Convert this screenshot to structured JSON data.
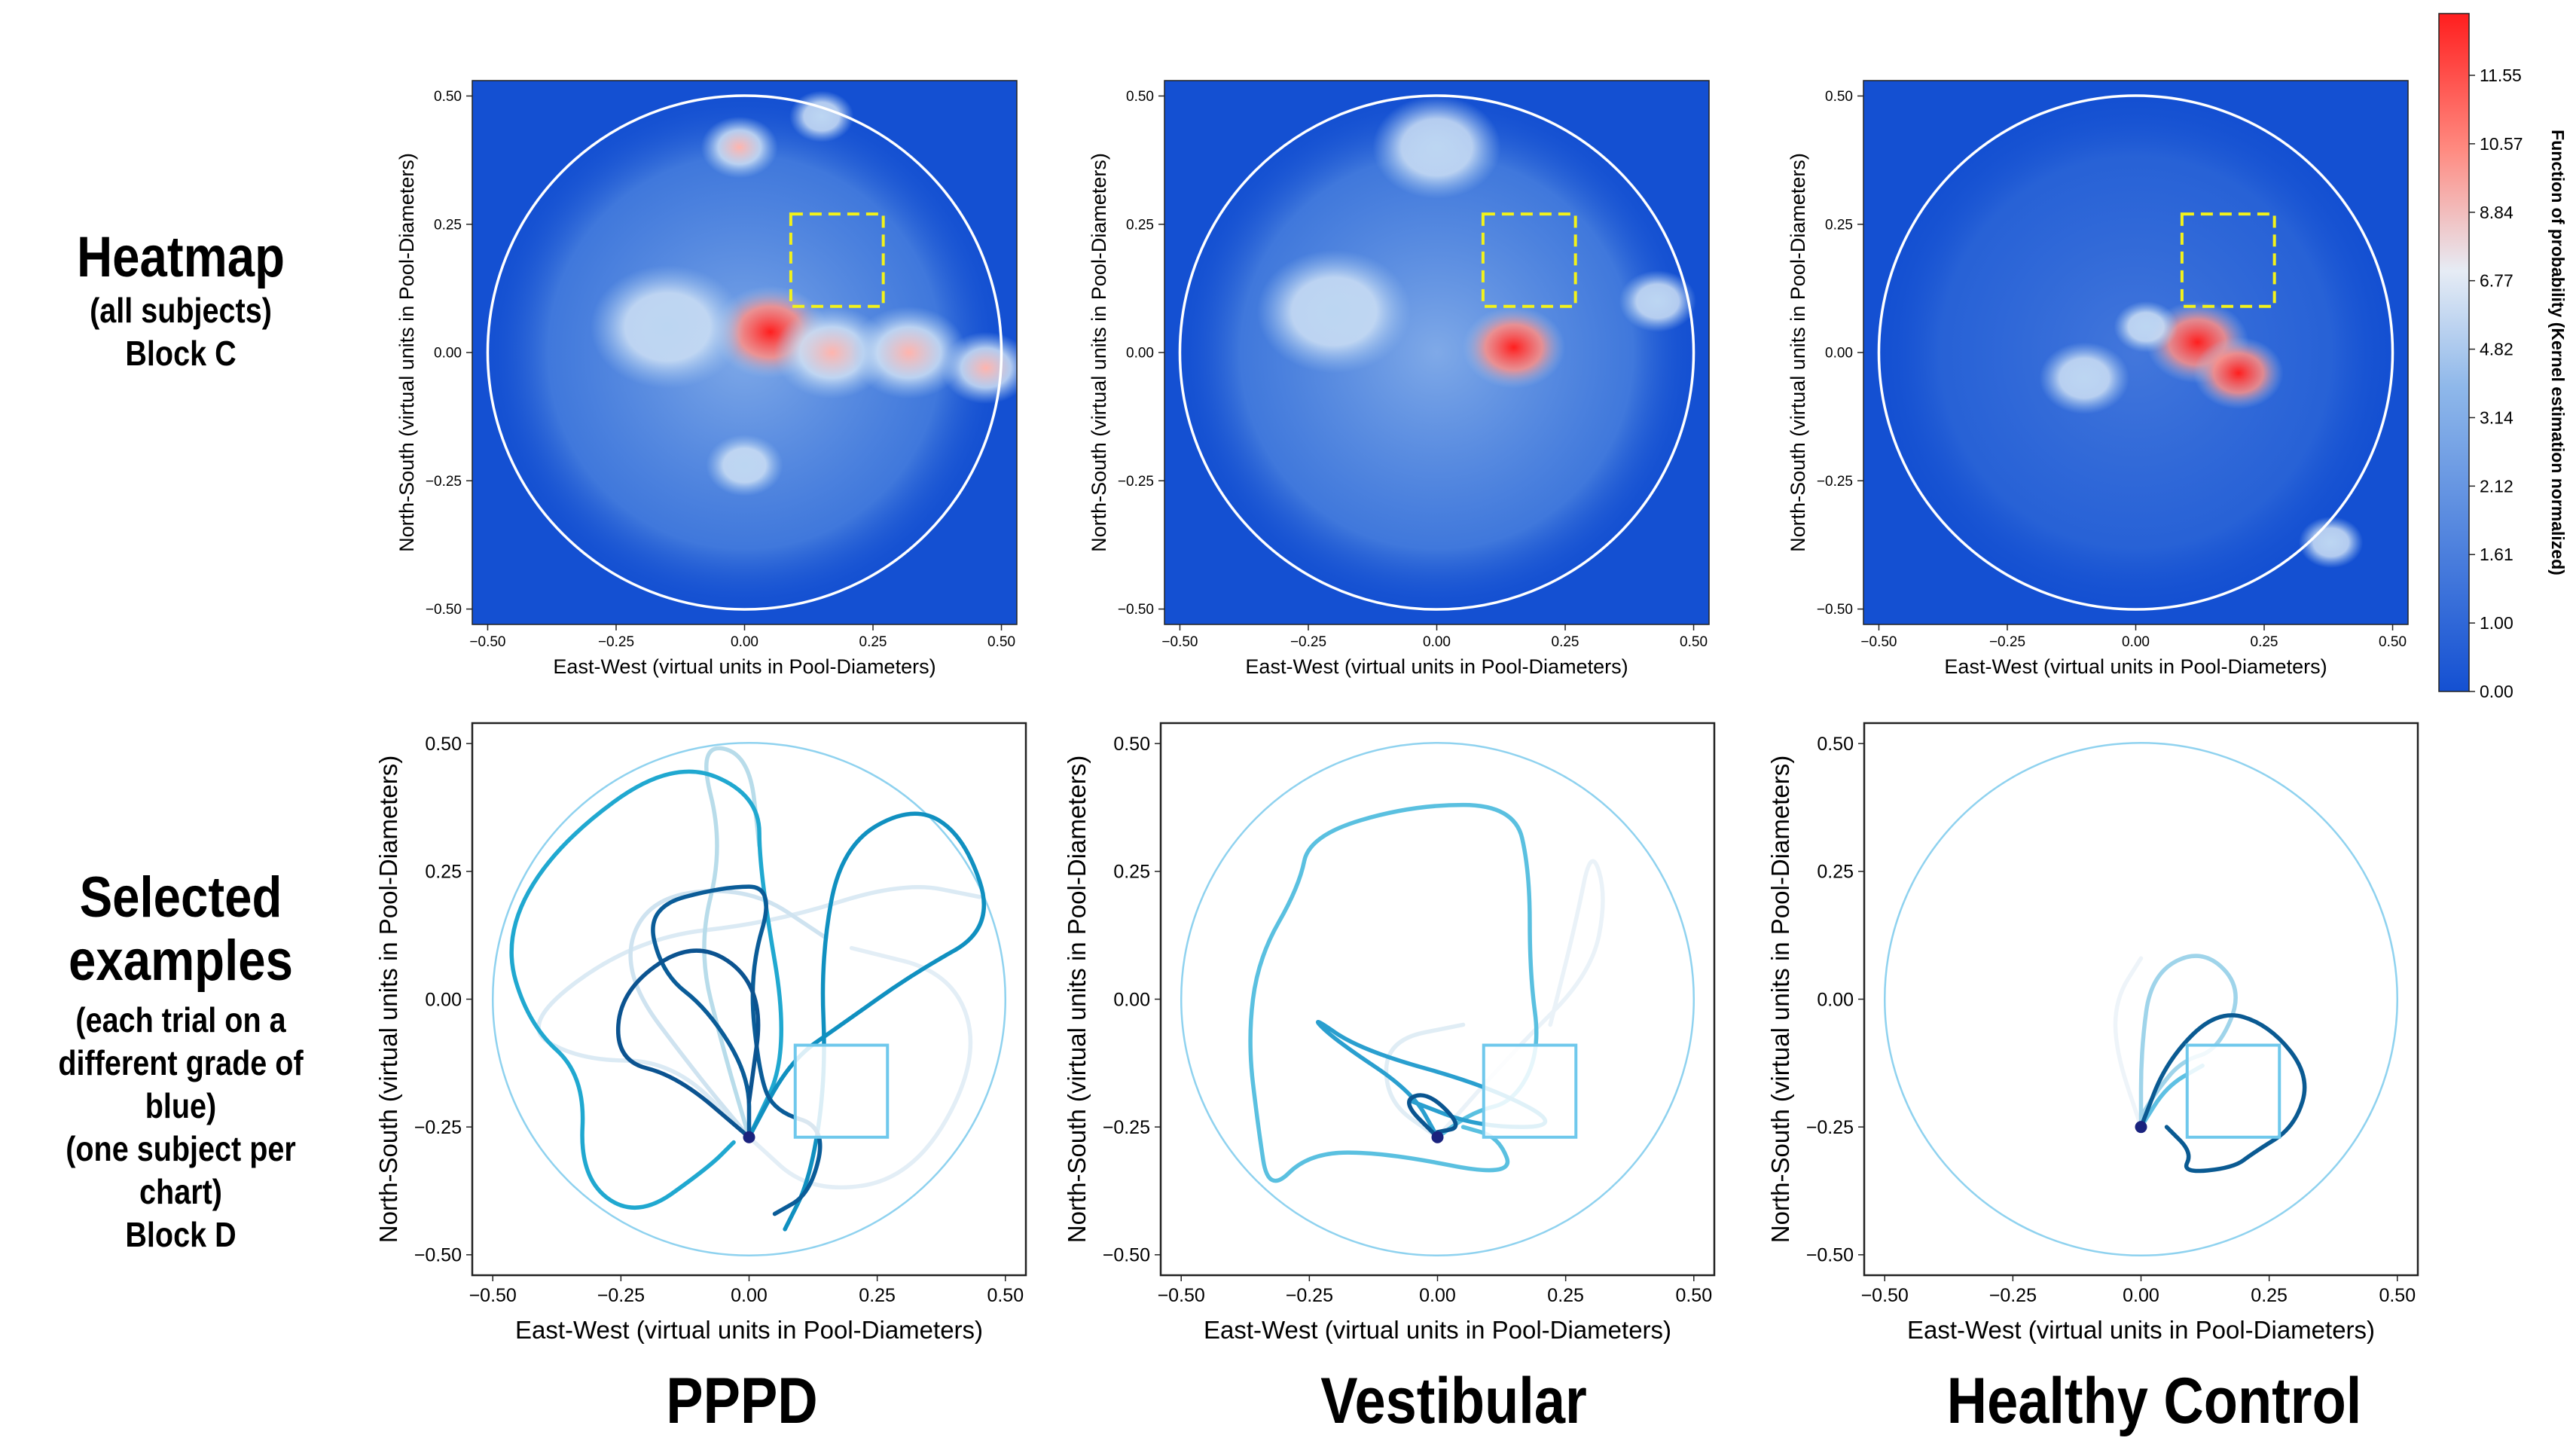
{
  "row_labels": {
    "heatmap": {
      "title": "Heatmap",
      "line1": "(all subjects)",
      "line2": "Block C"
    },
    "examples": {
      "title1": "Selected",
      "title2": "examples",
      "line1": "(each trial on a",
      "line2": "different grade of blue)",
      "line3": "(one subject per chart)",
      "line4": "Block D"
    }
  },
  "column_labels": [
    "PPPD",
    "Vestibular",
    "Healthy Control"
  ],
  "colorbar": {
    "label": "Function of probability (Kernel estimation normalized)",
    "ticks": [
      "11.55",
      "10.57",
      "8.84",
      "6.77",
      "4.82",
      "3.14",
      "2.12",
      "1.61",
      "1.00",
      "0.00"
    ],
    "colors": {
      "low": "#1450d2",
      "mid": "#e6ecf5",
      "high": "#ff1e1e"
    }
  },
  "chart_data": [
    {
      "type": "heatmap",
      "group": "PPPD",
      "block": "C",
      "xlabel": "East-West (virtual units in Pool-Diameters)",
      "ylabel": "North-South (virtual units in Pool-Diameters)",
      "xlim": [
        -0.53,
        0.53
      ],
      "ylim": [
        -0.53,
        0.53
      ],
      "xticks": [
        "−0.50",
        "−0.25",
        "0.00",
        "0.25",
        "0.50"
      ],
      "yticks": [
        "0.50",
        "0.25",
        "0.00",
        "−0.25",
        "−0.50"
      ],
      "pool_radius": 0.5,
      "platform": {
        "x0": 0.09,
        "x1": 0.27,
        "y0": 0.09,
        "y1": 0.27
      },
      "hotspots": [
        {
          "x": 0.05,
          "y": 0.04,
          "r": 0.09,
          "value": 11.5
        },
        {
          "x": 0.17,
          "y": 0.0,
          "r": 0.09,
          "value": 6.0
        },
        {
          "x": 0.32,
          "y": 0.0,
          "r": 0.09,
          "value": 6.0
        },
        {
          "x": 0.47,
          "y": -0.03,
          "r": 0.07,
          "value": 7.0
        },
        {
          "x": -0.01,
          "y": 0.4,
          "r": 0.06,
          "value": 5.5
        },
        {
          "x": 0.15,
          "y": 0.46,
          "r": 0.05,
          "value": 5.0
        },
        {
          "x": -0.15,
          "y": 0.05,
          "r": 0.12,
          "value": 4.0
        },
        {
          "x": 0.0,
          "y": -0.22,
          "r": 0.06,
          "value": 4.0
        }
      ]
    },
    {
      "type": "heatmap",
      "group": "Vestibular",
      "block": "C",
      "xlabel": "East-West (virtual units in Pool-Diameters)",
      "ylabel": "North-South (virtual units in Pool-Diameters)",
      "xlim": [
        -0.53,
        0.53
      ],
      "ylim": [
        -0.53,
        0.53
      ],
      "xticks": [
        "−0.50",
        "−0.25",
        "0.00",
        "0.25",
        "0.50"
      ],
      "yticks": [
        "0.50",
        "0.25",
        "0.00",
        "−0.25",
        "−0.50"
      ],
      "pool_radius": 0.5,
      "platform": {
        "x0": 0.09,
        "x1": 0.27,
        "y0": 0.09,
        "y1": 0.27
      },
      "hotspots": [
        {
          "x": 0.15,
          "y": 0.01,
          "r": 0.08,
          "value": 12.0
        },
        {
          "x": 0.43,
          "y": 0.1,
          "r": 0.06,
          "value": 5.0
        },
        {
          "x": 0.0,
          "y": 0.4,
          "r": 0.1,
          "value": 4.0
        },
        {
          "x": -0.2,
          "y": 0.08,
          "r": 0.12,
          "value": 3.5
        }
      ]
    },
    {
      "type": "heatmap",
      "group": "Healthy Control",
      "block": "C",
      "xlabel": "East-West (virtual units in Pool-Diameters)",
      "ylabel": "North-South (virtual units in Pool-Diameters)",
      "xlim": [
        -0.53,
        0.53
      ],
      "ylim": [
        -0.53,
        0.53
      ],
      "xticks": [
        "−0.50",
        "−0.25",
        "0.00",
        "0.25",
        "0.50"
      ],
      "yticks": [
        "0.50",
        "0.25",
        "0.00",
        "−0.25",
        "−0.50"
      ],
      "pool_radius": 0.5,
      "platform": {
        "x0": 0.09,
        "x1": 0.27,
        "y0": 0.09,
        "y1": 0.27
      },
      "hotspots": [
        {
          "x": 0.12,
          "y": 0.02,
          "r": 0.08,
          "value": 12.0
        },
        {
          "x": 0.2,
          "y": -0.04,
          "r": 0.07,
          "value": 11.0
        },
        {
          "x": 0.02,
          "y": 0.05,
          "r": 0.05,
          "value": 5.0
        },
        {
          "x": -0.1,
          "y": -0.05,
          "r": 0.07,
          "value": 3.0
        },
        {
          "x": 0.38,
          "y": -0.37,
          "r": 0.05,
          "value": 3.0
        }
      ]
    },
    {
      "type": "line",
      "group": "PPPD",
      "block": "D",
      "xlabel": "East-West (virtual units in Pool-Diameters)",
      "ylabel": "North-South (virtual units in Pool-Diameters)",
      "xlim": [
        -0.54,
        0.54
      ],
      "ylim": [
        -0.54,
        0.54
      ],
      "xticks": [
        "−0.50",
        "−0.25",
        "0.00",
        "0.25",
        "0.50"
      ],
      "yticks": [
        "0.50",
        "0.25",
        "0.00",
        "−0.25",
        "−0.50"
      ],
      "pool_radius": 0.5,
      "platform": {
        "x0": 0.09,
        "x1": 0.27,
        "y0": -0.09,
        "y1": -0.27
      },
      "start": {
        "x": 0.0,
        "y": -0.27
      },
      "series": [
        {
          "name": "trial",
          "color": "#dbeaf4",
          "points": [
            [
              0,
              -0.27
            ],
            [
              -0.15,
              -0.12
            ],
            [
              -0.33,
              -0.12
            ],
            [
              -0.45,
              -0.05
            ],
            [
              -0.22,
              0.12
            ],
            [
              0.05,
              0.15
            ],
            [
              0.3,
              0.23
            ],
            [
              0.45,
              0.2
            ]
          ]
        },
        {
          "name": "trial",
          "color": "#e3eef6",
          "points": [
            [
              0,
              -0.27
            ],
            [
              0.12,
              -0.38
            ],
            [
              0.32,
              -0.35
            ],
            [
              0.45,
              -0.12
            ],
            [
              0.4,
              0.05
            ],
            [
              0.2,
              0.1
            ]
          ]
        },
        {
          "name": "trial",
          "color": "#cfe3f0",
          "points": [
            [
              0,
              -0.27
            ],
            [
              -0.1,
              -0.15
            ],
            [
              -0.25,
              0.05
            ],
            [
              -0.2,
              0.2
            ],
            [
              0.0,
              0.22
            ],
            [
              0.15,
              0.12
            ]
          ]
        },
        {
          "name": "trial",
          "color": "#b8dcea",
          "points": [
            [
              0,
              -0.27
            ],
            [
              -0.05,
              -0.1
            ],
            [
              -0.1,
              0.1
            ],
            [
              -0.05,
              0.3
            ],
            [
              -0.1,
              0.5
            ],
            [
              0.0,
              0.48
            ],
            [
              0.02,
              0.3
            ]
          ]
        },
        {
          "name": "trial",
          "color": "#20a8d0",
          "points": [
            [
              0,
              -0.27
            ],
            [
              0.08,
              -0.1
            ],
            [
              0.02,
              0.25
            ],
            [
              0.02,
              0.4
            ],
            [
              -0.15,
              0.47
            ],
            [
              -0.38,
              0.3
            ],
            [
              -0.48,
              0.12
            ],
            [
              -0.43,
              -0.05
            ],
            [
              -0.32,
              -0.15
            ],
            [
              -0.33,
              -0.35
            ],
            [
              -0.22,
              -0.43
            ],
            [
              -0.08,
              -0.33
            ],
            [
              -0.03,
              -0.28
            ]
          ]
        },
        {
          "name": "trial",
          "color": "#1090c0",
          "points": [
            [
              0,
              -0.27
            ],
            [
              0.08,
              -0.12
            ],
            [
              0.18,
              -0.05
            ],
            [
              0.32,
              0.05
            ],
            [
              0.48,
              0.14
            ],
            [
              0.42,
              0.32
            ],
            [
              0.32,
              0.38
            ],
            [
              0.18,
              0.3
            ],
            [
              0.14,
              0.08
            ],
            [
              0.15,
              -0.15
            ],
            [
              0.12,
              -0.35
            ],
            [
              0.07,
              -0.45
            ]
          ]
        },
        {
          "name": "trial",
          "color": "#0a5c98",
          "points": [
            [
              0,
              -0.27
            ],
            [
              0.0,
              -0.15
            ],
            [
              -0.08,
              -0.02
            ],
            [
              -0.17,
              0.05
            ],
            [
              -0.2,
              0.18
            ],
            [
              -0.05,
              0.22
            ],
            [
              0.05,
              0.22
            ],
            [
              0.0,
              0.05
            ],
            [
              0.02,
              -0.15
            ],
            [
              0.05,
              -0.22
            ],
            [
              0.15,
              -0.25
            ],
            [
              0.12,
              -0.38
            ],
            [
              0.05,
              -0.42
            ]
          ]
        },
        {
          "name": "trial",
          "color": "#0b5390",
          "points": [
            [
              0.0,
              -0.27
            ],
            [
              -0.14,
              -0.15
            ],
            [
              -0.26,
              -0.12
            ],
            [
              -0.25,
              0.02
            ],
            [
              -0.1,
              0.12
            ],
            [
              0.03,
              0.02
            ],
            [
              0.0,
              -0.2
            ]
          ]
        }
      ]
    },
    {
      "type": "line",
      "group": "Vestibular",
      "block": "D",
      "xlabel": "East-West (virtual units in Pool-Diameters)",
      "ylabel": "North-South (virtual units in Pool-Diameters)",
      "xlim": [
        -0.54,
        0.54
      ],
      "ylim": [
        -0.54,
        0.54
      ],
      "xticks": [
        "−0.50",
        "−0.25",
        "0.00",
        "0.25",
        "0.50"
      ],
      "yticks": [
        "0.50",
        "0.25",
        "0.00",
        "−0.25",
        "−0.50"
      ],
      "pool_radius": 0.5,
      "platform": {
        "x0": 0.09,
        "x1": 0.27,
        "y0": -0.09,
        "y1": -0.27
      },
      "start": {
        "x": 0.0,
        "y": -0.27
      },
      "series": [
        {
          "name": "trial",
          "color": "#eaf2f8",
          "points": [
            [
              0,
              -0.27
            ],
            [
              0.15,
              -0.1
            ],
            [
              0.3,
              0.05
            ],
            [
              0.33,
              0.2
            ],
            [
              0.3,
              0.3
            ],
            [
              0.27,
              0.15
            ],
            [
              0.22,
              -0.05
            ]
          ]
        },
        {
          "name": "trial",
          "color": "#e0edf5",
          "points": [
            [
              0,
              -0.27
            ],
            [
              -0.1,
              -0.2
            ],
            [
              -0.1,
              -0.08
            ],
            [
              0.05,
              -0.05
            ]
          ]
        },
        {
          "name": "trial",
          "color": "#5ac0e0",
          "points": [
            [
              0,
              -0.27
            ],
            [
              0.07,
              -0.22
            ],
            [
              0.15,
              -0.2
            ],
            [
              0.2,
              -0.1
            ],
            [
              0.18,
              0.05
            ],
            [
              0.18,
              0.25
            ],
            [
              0.15,
              0.38
            ],
            [
              -0.05,
              0.38
            ],
            [
              -0.25,
              0.32
            ],
            [
              -0.27,
              0.22
            ],
            [
              -0.35,
              0.08
            ],
            [
              -0.37,
              -0.08
            ],
            [
              -0.35,
              -0.25
            ],
            [
              -0.33,
              -0.38
            ],
            [
              -0.25,
              -0.3
            ],
            [
              -0.1,
              -0.3
            ],
            [
              0.15,
              -0.35
            ],
            [
              0.12,
              -0.27
            ],
            [
              0.05,
              -0.25
            ]
          ]
        },
        {
          "name": "trial",
          "color": "#2a9fcf",
          "points": [
            [
              0,
              -0.27
            ],
            [
              -0.05,
              -0.18
            ],
            [
              -0.2,
              -0.08
            ],
            [
              -0.25,
              -0.03
            ],
            [
              -0.15,
              -0.1
            ],
            [
              0.1,
              -0.17
            ],
            [
              0.25,
              -0.25
            ],
            [
              0.08,
              -0.25
            ],
            [
              -0.05,
              -0.2
            ]
          ]
        },
        {
          "name": "trial",
          "color": "#0a5590",
          "points": [
            [
              0,
              -0.27
            ],
            [
              -0.07,
              -0.2
            ],
            [
              -0.02,
              -0.18
            ],
            [
              0.05,
              -0.25
            ],
            [
              0.0,
              -0.26
            ]
          ]
        }
      ]
    },
    {
      "type": "line",
      "group": "Healthy Control",
      "block": "D",
      "xlabel": "East-West (virtual units in Pool-Diameters)",
      "ylabel": "North-South (virtual units in Pool-Diameters)",
      "xlim": [
        -0.54,
        0.54
      ],
      "ylim": [
        -0.54,
        0.54
      ],
      "xticks": [
        "−0.50",
        "−0.25",
        "0.00",
        "0.25",
        "0.50"
      ],
      "yticks": [
        "0.50",
        "0.25",
        "0.00",
        "−0.25",
        "−0.50"
      ],
      "pool_radius": 0.5,
      "platform": {
        "x0": 0.09,
        "x1": 0.27,
        "y0": -0.09,
        "y1": -0.27
      },
      "start": {
        "x": 0.0,
        "y": -0.25
      },
      "series": [
        {
          "name": "trial",
          "color": "#eef4f9",
          "points": [
            [
              0,
              -0.25
            ],
            [
              -0.05,
              -0.1
            ],
            [
              -0.05,
              0.0
            ],
            [
              0.0,
              0.08
            ]
          ]
        },
        {
          "name": "trial",
          "color": "#9fd4ea",
          "points": [
            [
              0,
              -0.25
            ],
            [
              0.0,
              -0.1
            ],
            [
              0.02,
              0.05
            ],
            [
              0.12,
              0.1
            ],
            [
              0.2,
              0.02
            ],
            [
              0.15,
              -0.1
            ],
            [
              0.08,
              -0.12
            ],
            [
              0.03,
              -0.18
            ],
            [
              0.0,
              -0.23
            ]
          ]
        },
        {
          "name": "trial",
          "color": "#5ec0e3",
          "points": [
            [
              0,
              -0.25
            ],
            [
              0.05,
              -0.17
            ],
            [
              0.12,
              -0.13
            ]
          ]
        },
        {
          "name": "trial",
          "color": "#0a5a92",
          "points": [
            [
              0,
              -0.25
            ],
            [
              0.05,
              -0.12
            ],
            [
              0.15,
              -0.02
            ],
            [
              0.25,
              -0.05
            ],
            [
              0.33,
              -0.15
            ],
            [
              0.3,
              -0.25
            ],
            [
              0.22,
              -0.3
            ],
            [
              0.18,
              -0.33
            ],
            [
              0.08,
              -0.34
            ],
            [
              0.1,
              -0.3
            ],
            [
              0.05,
              -0.25
            ]
          ]
        }
      ]
    }
  ]
}
